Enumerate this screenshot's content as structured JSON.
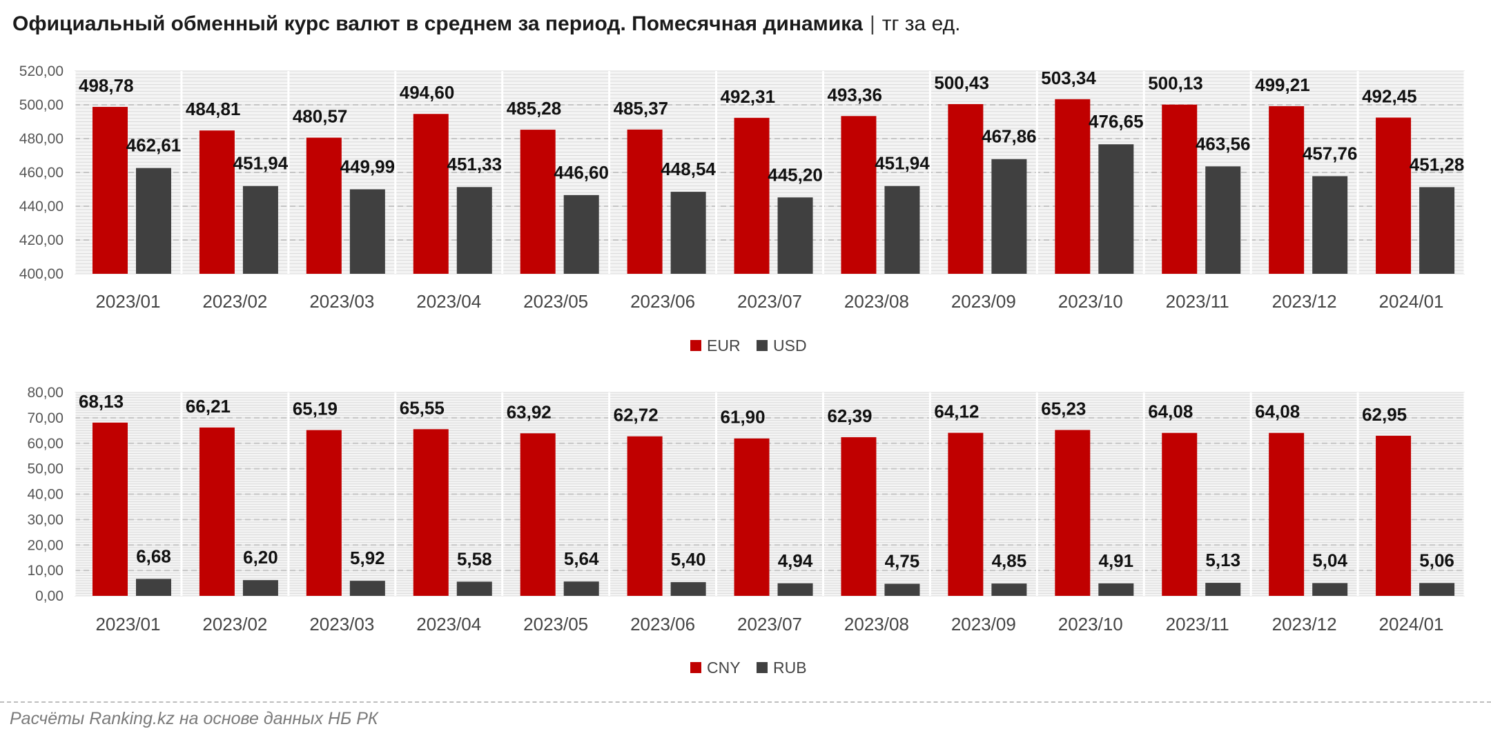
{
  "title": {
    "main": "Официальный обменный курс валют в среднем за период. Помесячная динамика",
    "separator": "|",
    "unit": "тг за ед."
  },
  "chart_data": [
    {
      "type": "bar",
      "categories": [
        "2023/01",
        "2023/02",
        "2023/03",
        "2023/04",
        "2023/05",
        "2023/06",
        "2023/07",
        "2023/08",
        "2023/09",
        "2023/10",
        "2023/11",
        "2023/12",
        "2024/01"
      ],
      "ylim": [
        400,
        520
      ],
      "yticks": [
        400,
        420,
        440,
        460,
        480,
        500,
        520
      ],
      "ytick_labels": [
        "400,00",
        "420,00",
        "440,00",
        "460,00",
        "480,00",
        "500,00",
        "520,00"
      ],
      "grid": true,
      "legend": "bottom",
      "series": [
        {
          "name": "EUR",
          "color": "#c00000",
          "values": [
            498.78,
            484.81,
            480.57,
            494.6,
            485.28,
            485.37,
            492.31,
            493.36,
            500.43,
            503.34,
            500.13,
            499.21,
            492.45
          ],
          "labels": [
            "498,78",
            "484,81",
            "480,57",
            "494,60",
            "485,28",
            "485,37",
            "492,31",
            "493,36",
            "500,43",
            "503,34",
            "500,13",
            "499,21",
            "492,45"
          ]
        },
        {
          "name": "USD",
          "color": "#404040",
          "values": [
            462.61,
            451.94,
            449.99,
            451.33,
            446.6,
            448.54,
            445.2,
            451.94,
            467.86,
            476.65,
            463.56,
            457.76,
            451.28
          ],
          "labels": [
            "462,61",
            "451,94",
            "449,99",
            "451,33",
            "446,60",
            "448,54",
            "445,20",
            "451,94",
            "467,86",
            "476,65",
            "463,56",
            "457,76",
            "451,28"
          ]
        }
      ]
    },
    {
      "type": "bar",
      "categories": [
        "2023/01",
        "2023/02",
        "2023/03",
        "2023/04",
        "2023/05",
        "2023/06",
        "2023/07",
        "2023/08",
        "2023/09",
        "2023/10",
        "2023/11",
        "2023/12",
        "2024/01"
      ],
      "ylim": [
        0,
        80
      ],
      "yticks": [
        0,
        10,
        20,
        30,
        40,
        50,
        60,
        70,
        80
      ],
      "ytick_labels": [
        "0,00",
        "10,00",
        "20,00",
        "30,00",
        "40,00",
        "50,00",
        "60,00",
        "70,00",
        "80,00"
      ],
      "grid": true,
      "legend": "bottom",
      "series": [
        {
          "name": "CNY",
          "color": "#c00000",
          "values": [
            68.13,
            66.21,
            65.19,
            65.55,
            63.92,
            62.72,
            61.9,
            62.39,
            64.12,
            65.23,
            64.08,
            64.08,
            62.95
          ],
          "labels": [
            "68,13",
            "66,21",
            "65,19",
            "65,55",
            "63,92",
            "62,72",
            "61,90",
            "62,39",
            "64,12",
            "65,23",
            "64,08",
            "64,08",
            "62,95"
          ]
        },
        {
          "name": "RUB",
          "color": "#404040",
          "values": [
            6.68,
            6.2,
            5.92,
            5.58,
            5.64,
            5.4,
            4.94,
            4.75,
            4.85,
            4.91,
            5.13,
            5.04,
            5.06
          ],
          "labels": [
            "6,68",
            "6,20",
            "5,92",
            "5,58",
            "5,64",
            "5,40",
            "4,94",
            "4,75",
            "4,85",
            "4,91",
            "5,13",
            "5,04",
            "5,06"
          ]
        }
      ]
    }
  ],
  "source": "Расчёты Ranking.kz на основе данных НБ РК"
}
